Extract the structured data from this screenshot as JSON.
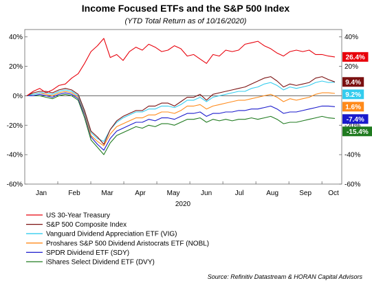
{
  "chart_data": {
    "type": "line",
    "title": "Income Focused ETFs and the S&P 500 Index",
    "subtitle": "(YTD Total Return as of 10/16/2020)",
    "xlabel": "2020",
    "ylabel": "",
    "x_ticks": [
      "Jan",
      "Feb",
      "Mar",
      "Apr",
      "May",
      "Jun",
      "Jul",
      "Aug",
      "Sep",
      "Oct"
    ],
    "y_ticks": [
      "-60%",
      "-40%",
      "-20%",
      "0%",
      "20%",
      "40%"
    ],
    "ylim": [
      -60,
      45
    ],
    "grid": false,
    "legend_position": "bottom",
    "zero_line": true,
    "source": "Source: Refinitiv Datastream & HORAN Capital Advisors",
    "series": [
      {
        "name": "US 30-Year Treasury",
        "color": "#e8000b",
        "end_label": "26.4%",
        "label_bg": "#e8000b",
        "values": [
          0,
          3,
          5,
          2,
          4,
          7,
          8,
          12,
          15,
          22,
          30,
          34,
          39,
          26,
          28,
          24,
          30,
          33,
          31,
          35,
          33,
          30,
          31,
          34,
          32,
          27,
          28,
          25,
          22,
          28,
          27,
          31,
          30,
          31,
          35,
          36,
          37,
          34,
          32,
          29,
          27,
          30,
          31,
          30,
          31,
          28,
          28,
          27,
          26.4
        ]
      },
      {
        "name": "S&P 500 Composite Index",
        "color": "#7a1010",
        "end_label": "9.4%",
        "label_bg": "#7a1010",
        "values": [
          0,
          2,
          3,
          3,
          2,
          4,
          5,
          4,
          1,
          -10,
          -24,
          -28,
          -33,
          -23,
          -17,
          -14,
          -12,
          -10,
          -10,
          -7,
          -7,
          -5,
          -5,
          -7,
          -4,
          -1,
          -1,
          1,
          -3,
          1,
          2,
          3,
          4,
          5,
          6,
          8,
          10,
          12,
          13,
          10,
          6,
          8,
          7,
          8,
          9,
          12,
          13,
          11,
          9.4
        ]
      },
      {
        "name": "Vanguard Dividend Appreciation ETF (VIG)",
        "color": "#33ccee",
        "end_label": "9.2%",
        "label_bg": "#33ccee",
        "values": [
          0,
          1,
          2,
          2,
          1,
          3,
          4,
          3,
          0,
          -11,
          -25,
          -29,
          -31,
          -23,
          -18,
          -15,
          -13,
          -11,
          -11,
          -9,
          -9,
          -7,
          -7,
          -8,
          -6,
          -3,
          -3,
          -1,
          -4,
          -1,
          0,
          1,
          2,
          3,
          3,
          5,
          6,
          8,
          9,
          7,
          4,
          6,
          5,
          6,
          7,
          9,
          10,
          9,
          9.2
        ]
      },
      {
        "name": "Proshares S&P 500 Dividend Aristocrats ETF (NOBL)",
        "color": "#ff8a1a",
        "end_label": "1.6%",
        "label_bg": "#ff8a1a",
        "values": [
          0,
          1,
          2,
          1,
          0,
          2,
          3,
          2,
          -1,
          -12,
          -27,
          -31,
          -34,
          -26,
          -21,
          -19,
          -17,
          -15,
          -15,
          -13,
          -13,
          -11,
          -11,
          -12,
          -10,
          -7,
          -7,
          -6,
          -9,
          -7,
          -6,
          -5,
          -4,
          -3,
          -3,
          -2,
          -1,
          0,
          1,
          -1,
          -4,
          -2,
          -3,
          -2,
          -1,
          1,
          2,
          2,
          1.6
        ]
      },
      {
        "name": "SPDR Dividend ETF (SDY)",
        "color": "#1a1acc",
        "end_label": "-7.4%",
        "label_bg": "#1a1acc",
        "values": [
          0,
          0,
          1,
          0,
          -1,
          1,
          2,
          1,
          -2,
          -13,
          -28,
          -33,
          -37,
          -29,
          -24,
          -22,
          -20,
          -18,
          -18,
          -16,
          -17,
          -15,
          -15,
          -16,
          -14,
          -12,
          -12,
          -11,
          -14,
          -12,
          -12,
          -11,
          -11,
          -10,
          -10,
          -9,
          -9,
          -8,
          -7,
          -9,
          -12,
          -11,
          -11,
          -10,
          -9,
          -8,
          -7,
          -7,
          -7.4
        ]
      },
      {
        "name": "iShares Select Dividend ETF (DVY)",
        "color": "#1f7a1f",
        "end_label": "-15.4%",
        "label_bg": "#1f7a1f",
        "values": [
          0,
          0,
          0,
          -1,
          -2,
          0,
          1,
          0,
          -3,
          -15,
          -30,
          -35,
          -40,
          -32,
          -27,
          -25,
          -23,
          -21,
          -22,
          -20,
          -21,
          -19,
          -19,
          -20,
          -18,
          -16,
          -16,
          -15,
          -18,
          -16,
          -17,
          -16,
          -17,
          -16,
          -16,
          -15,
          -16,
          -15,
          -14,
          -16,
          -19,
          -18,
          -18,
          -17,
          -16,
          -15,
          -14,
          -15,
          -15.4
        ]
      }
    ]
  }
}
